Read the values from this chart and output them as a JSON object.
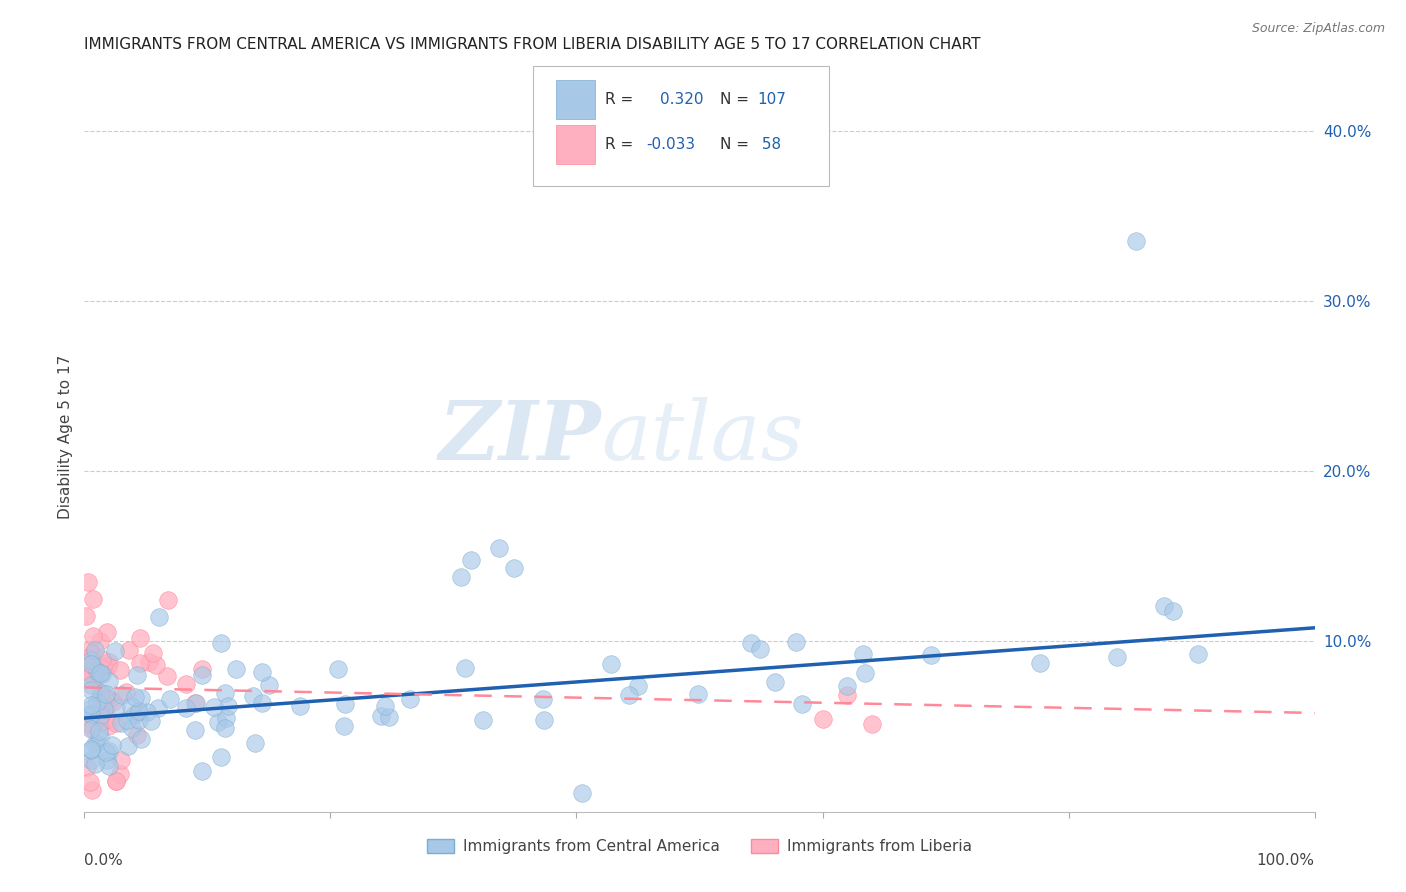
{
  "title": "IMMIGRANTS FROM CENTRAL AMERICA VS IMMIGRANTS FROM LIBERIA DISABILITY AGE 5 TO 17 CORRELATION CHART",
  "source": "Source: ZipAtlas.com",
  "ylabel": "Disability Age 5 to 17",
  "watermark_zip": "ZIP",
  "watermark_atlas": "atlas",
  "legend_r1_label": "R = ",
  "legend_r1_val": "0.320",
  "legend_n1_label": "N =",
  "legend_n1_val": "107",
  "legend_r2_label": "R =",
  "legend_r2_val": "-0.033",
  "legend_n2_label": "N =",
  "legend_n2_val": "58",
  "legend_label1": "Immigrants from Central America",
  "legend_label2": "Immigrants from Liberia",
  "blue_color": "#A8C8E8",
  "blue_edge_color": "#7AAED0",
  "pink_color": "#FFB0C0",
  "pink_edge_color": "#FF8899",
  "blue_line_color": "#2060B0",
  "pink_line_color": "#FF8899",
  "text_blue": "#2060B0",
  "xlim": [
    0.0,
    1.0
  ],
  "ylim": [
    0.0,
    0.44
  ],
  "yticks": [
    0.1,
    0.2,
    0.3,
    0.4
  ],
  "ytick_labels": [
    "10.0%",
    "20.0%",
    "30.0%",
    "40.0%"
  ],
  "blue_trend_x": [
    0.0,
    1.0
  ],
  "blue_trend_y": [
    0.055,
    0.108
  ],
  "pink_trend_x": [
    0.0,
    1.0
  ],
  "pink_trend_y": [
    0.073,
    0.058
  ],
  "title_fontsize": 11,
  "axis_label_fontsize": 11,
  "tick_fontsize": 11,
  "watermark_fontsize_zip": 60,
  "watermark_fontsize_atlas": 60
}
